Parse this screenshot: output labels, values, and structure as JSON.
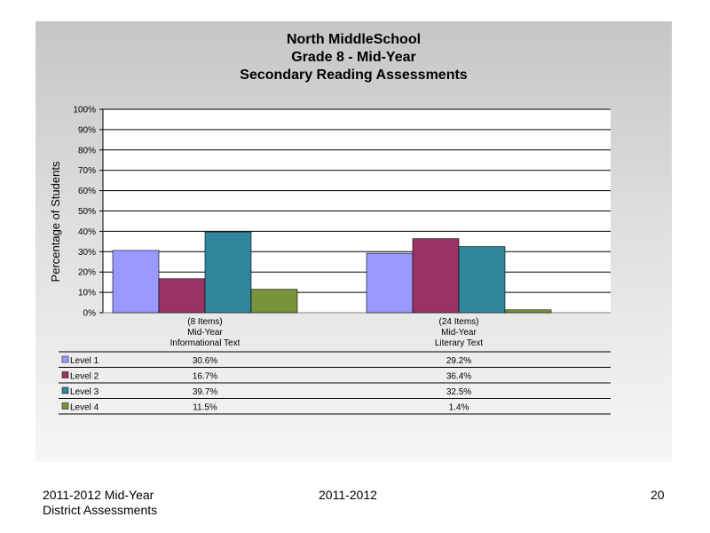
{
  "slide": {
    "title_lines": [
      "North MiddleSchool",
      "Grade 8 - Mid-Year",
      "Secondary Reading Assessments"
    ],
    "footer_left_line1": "2011-2012  Mid-Year",
    "footer_left_line2": "District Assessments",
    "footer_center": "2011-2012",
    "page_number": "20"
  },
  "chart_data": {
    "type": "bar",
    "title": "North MiddleSchool\nGrade 8 - Mid-Year\nSecondary Reading Assessments",
    "ylabel": "Percentage of Students",
    "xlabel": "",
    "ylim": [
      0,
      100
    ],
    "yticks": [
      "0%",
      "10%",
      "20%",
      "30%",
      "40%",
      "50%",
      "60%",
      "70%",
      "80%",
      "90%",
      "100%"
    ],
    "grid": "horizontal",
    "legend": "data-table",
    "categories": [
      [
        "(8 Items)",
        "Mid-Year",
        "Informational Text"
      ],
      [
        "(24 Items)",
        "Mid-Year",
        "Literary Text"
      ]
    ],
    "series": [
      {
        "name": "Level 1",
        "color": "#9999ff",
        "values": [
          30.6,
          29.2
        ],
        "labels": [
          "30.6%",
          "29.2%"
        ]
      },
      {
        "name": "Level 2",
        "color": "#993366",
        "values": [
          16.7,
          36.4
        ],
        "labels": [
          "16.7%",
          "36.4%"
        ]
      },
      {
        "name": "Level 3",
        "color": "#31859c",
        "values": [
          39.7,
          32.5
        ],
        "labels": [
          "39.7%",
          "32.5%"
        ]
      },
      {
        "name": "Level 4",
        "color": "#77933c",
        "values": [
          11.5,
          1.4
        ],
        "labels": [
          "11.5%",
          "1.4%"
        ]
      }
    ]
  }
}
